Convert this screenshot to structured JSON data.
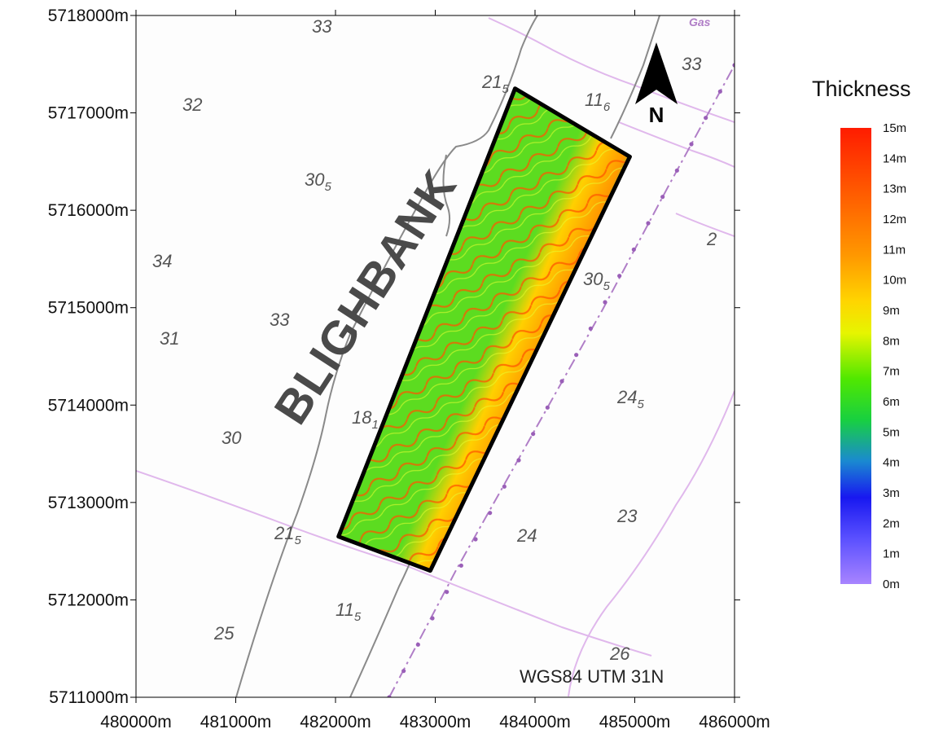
{
  "map": {
    "crs_label": "WGS84 UTM 31N",
    "bank_name": "BLIGHBANK",
    "north_label": "N",
    "gas_label": "Gas",
    "x_ticks": [
      "480000m",
      "481000m",
      "482000m",
      "483000m",
      "484000m",
      "485000m",
      "486000m"
    ],
    "y_ticks": [
      "5718000m",
      "5717000m",
      "5716000m",
      "5715000m",
      "5714000m",
      "5713000m",
      "5712000m",
      "5711000m"
    ],
    "x_range": [
      480000,
      486000
    ],
    "y_range": [
      5711000,
      5718000
    ],
    "survey_area_corners": [
      [
        483800,
        5717250
      ],
      [
        484950,
        5716550
      ],
      [
        482950,
        5712300
      ],
      [
        482030,
        5712650
      ]
    ],
    "depths": {
      "d1": {
        "main": "33",
        "sub": ""
      },
      "d2": {
        "main": "32",
        "sub": ""
      },
      "d3": {
        "main": "21",
        "sub": "5"
      },
      "d4": {
        "main": "11",
        "sub": "6"
      },
      "d5": {
        "main": "33",
        "sub": ""
      },
      "d6": {
        "main": "30",
        "sub": "5"
      },
      "d7": {
        "main": "34",
        "sub": ""
      },
      "d8": {
        "main": "33",
        "sub": ""
      },
      "d9": {
        "main": "31",
        "sub": ""
      },
      "d10": {
        "main": "30",
        "sub": "5"
      },
      "d11": {
        "main": "24",
        "sub": "5"
      },
      "d12": {
        "main": "18",
        "sub": "1"
      },
      "d13": {
        "main": "30",
        "sub": ""
      },
      "d14": {
        "main": "23",
        "sub": ""
      },
      "d15": {
        "main": "21",
        "sub": "5"
      },
      "d16": {
        "main": "24",
        "sub": ""
      },
      "d17": {
        "main": "11",
        "sub": "5"
      },
      "d18": {
        "main": "25",
        "sub": ""
      },
      "d19": {
        "main": "26",
        "sub": ""
      },
      "d20": {
        "main": "2",
        "sub": ""
      }
    }
  },
  "legend": {
    "title": "Thickness",
    "labels": [
      "15m",
      "14m",
      "13m",
      "12m",
      "11m",
      "10m",
      "9m",
      "8m",
      "7m",
      "6m",
      "5m",
      "4m",
      "3m",
      "2m",
      "1m",
      "0m"
    ],
    "colors": [
      "#ff1c00",
      "#ff3c00",
      "#ff5a00",
      "#ff7a00",
      "#ff9800",
      "#ffbf00",
      "#ffe800",
      "#d6f500",
      "#90ee00",
      "#2ee800",
      "#17c85a",
      "#1a7ae0",
      "#1e1ef2",
      "#4d4dff",
      "#7a6bff",
      "#a884ff"
    ]
  }
}
